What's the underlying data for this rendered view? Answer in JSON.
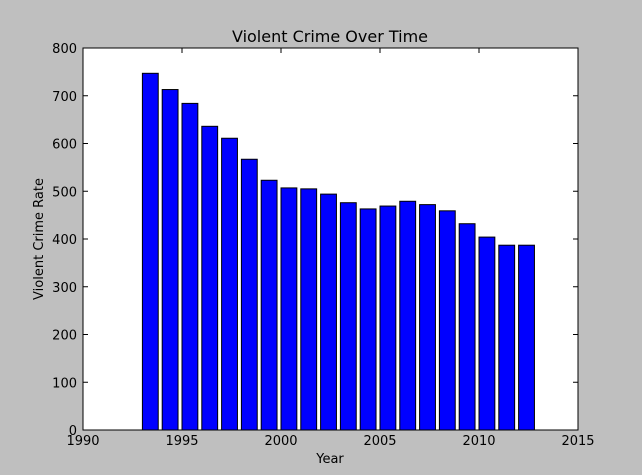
{
  "chart_data": {
    "type": "bar",
    "title": "Violent Crime Over Time",
    "xlabel": "Year",
    "ylabel": "Violent Crime Rate",
    "xlim": [
      1990,
      2015
    ],
    "ylim": [
      0,
      800
    ],
    "x_ticks": [
      1990,
      1995,
      2000,
      2005,
      2010,
      2015
    ],
    "y_ticks": [
      0,
      100,
      200,
      300,
      400,
      500,
      600,
      700,
      800
    ],
    "x_tick_labels": [
      "1990",
      "1995",
      "2000",
      "2005",
      "2010",
      "2015"
    ],
    "y_tick_labels": [
      "0",
      "100",
      "200",
      "300",
      "400",
      "500",
      "600",
      "700",
      "800"
    ],
    "grid": false,
    "bar_color": "#0000ff",
    "bar_edge_color": "#000000",
    "x": [
      1993,
      1994,
      1995,
      1996,
      1997,
      1998,
      1999,
      2000,
      2001,
      2002,
      2003,
      2004,
      2005,
      2006,
      2007,
      2008,
      2009,
      2010,
      2011,
      2012
    ],
    "values": [
      747,
      713,
      684,
      636,
      611,
      567,
      523,
      507,
      505,
      494,
      476,
      463,
      469,
      479,
      472,
      459,
      432,
      404,
      387,
      387
    ]
  }
}
